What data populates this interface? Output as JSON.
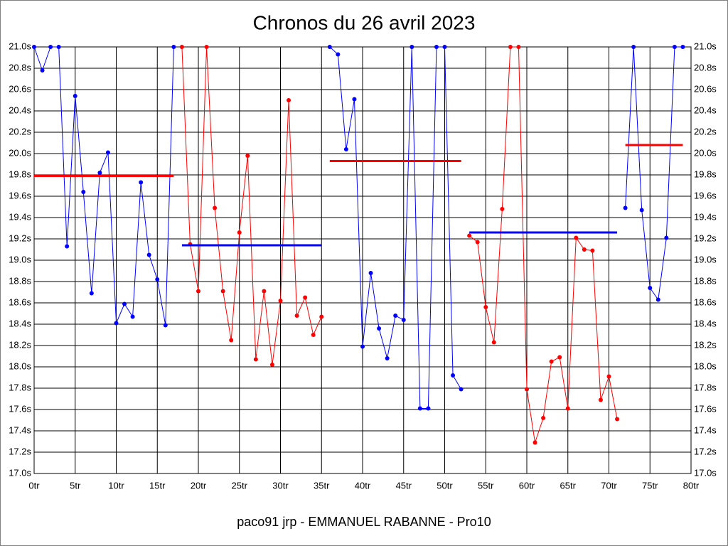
{
  "chart_data": {
    "type": "line",
    "title": "Chronos du 26 avril 2023",
    "footer": "paco91 jrp - EMMANUEL RABANNE - Pro10",
    "x": [
      0,
      1,
      2,
      3,
      4,
      5,
      6,
      7,
      8,
      9,
      10,
      11,
      12,
      13,
      14,
      15,
      16,
      17,
      18,
      19,
      20,
      21,
      22,
      23,
      24,
      25,
      26,
      27,
      28,
      29,
      30,
      31,
      32,
      33,
      34,
      35,
      36,
      37,
      38,
      39,
      40,
      41,
      42,
      43,
      44,
      45,
      46,
      47,
      48,
      49,
      50,
      51,
      52,
      53,
      54,
      55,
      56,
      57,
      58,
      59,
      60,
      61,
      62,
      63,
      64,
      65,
      66,
      67,
      68,
      69,
      70,
      71,
      72,
      73,
      74,
      75,
      76,
      77,
      78,
      79
    ],
    "series": [
      {
        "color": "#0000ff",
        "values": [
          21.0,
          20.78,
          21.0,
          21.0,
          19.13,
          20.54,
          19.64,
          18.69,
          19.82,
          20.01,
          18.41,
          18.59,
          18.47,
          19.73,
          19.05,
          18.82,
          18.39,
          21.0,
          null,
          null,
          null,
          null,
          null,
          null,
          null,
          null,
          null,
          null,
          null,
          null,
          null,
          null,
          null,
          null,
          null,
          null,
          21.0,
          20.93,
          20.04,
          20.51,
          18.19,
          18.88,
          18.36,
          18.08,
          18.48,
          18.44,
          21.0,
          17.61,
          17.61,
          21.0,
          21.0,
          17.92,
          17.79,
          null,
          null,
          null,
          null,
          null,
          null,
          null,
          null,
          null,
          null,
          null,
          null,
          null,
          null,
          null,
          null,
          null,
          null,
          null,
          19.49,
          21.0,
          19.47,
          18.74,
          18.63,
          19.21,
          21.0,
          21.0
        ]
      },
      {
        "color": "#ff0000",
        "values": [
          null,
          null,
          null,
          null,
          null,
          null,
          null,
          null,
          null,
          null,
          null,
          null,
          null,
          null,
          null,
          null,
          null,
          null,
          21.0,
          19.15,
          18.71,
          21.0,
          19.49,
          18.71,
          18.25,
          19.26,
          19.98,
          18.07,
          18.71,
          18.02,
          18.62,
          20.5,
          18.48,
          18.65,
          18.3,
          18.47,
          null,
          null,
          null,
          null,
          null,
          null,
          null,
          null,
          null,
          null,
          null,
          null,
          null,
          null,
          null,
          null,
          null,
          19.23,
          19.17,
          18.56,
          18.23,
          19.48,
          21.0,
          21.0,
          17.79,
          17.29,
          17.52,
          18.05,
          18.09,
          17.61,
          19.21,
          19.1,
          19.09,
          17.69,
          17.91,
          17.51,
          null,
          null,
          null,
          null,
          null,
          null,
          null,
          null
        ]
      }
    ],
    "averages": [
      {
        "color": "#ff0000",
        "x": [
          0,
          17
        ],
        "value": 19.79
      },
      {
        "color": "#0000ff",
        "x": [
          18,
          35
        ],
        "value": 19.14
      },
      {
        "color": "#ff0000",
        "x": [
          36,
          52
        ],
        "value": 19.93
      },
      {
        "color": "#0000ff",
        "x": [
          53,
          71
        ],
        "value": 19.26
      },
      {
        "color": "#ff0000",
        "x": [
          72,
          79
        ],
        "value": 20.08
      }
    ],
    "xlim": [
      0,
      80
    ],
    "ylim": [
      17.0,
      21.0
    ],
    "xticks": [
      {
        "value": 0,
        "label": "0tr"
      },
      {
        "value": 5,
        "label": "5tr"
      },
      {
        "value": 10,
        "label": "10tr"
      },
      {
        "value": 15,
        "label": "15tr"
      },
      {
        "value": 20,
        "label": "20tr"
      },
      {
        "value": 25,
        "label": "25tr"
      },
      {
        "value": 30,
        "label": "30tr"
      },
      {
        "value": 35,
        "label": "35tr"
      },
      {
        "value": 40,
        "label": "40tr"
      },
      {
        "value": 45,
        "label": "45tr"
      },
      {
        "value": 50,
        "label": "50tr"
      },
      {
        "value": 55,
        "label": "55tr"
      },
      {
        "value": 60,
        "label": "60tr"
      },
      {
        "value": 65,
        "label": "65tr"
      },
      {
        "value": 70,
        "label": "70tr"
      },
      {
        "value": 75,
        "label": "75tr"
      },
      {
        "value": 80,
        "label": "80tr"
      }
    ],
    "yticks": [
      {
        "value": 17.0,
        "label": "17.0s"
      },
      {
        "value": 17.2,
        "label": "17.2s"
      },
      {
        "value": 17.4,
        "label": "17.4s"
      },
      {
        "value": 17.6,
        "label": "17.6s"
      },
      {
        "value": 17.8,
        "label": "17.8s"
      },
      {
        "value": 18.0,
        "label": "18.0s"
      },
      {
        "value": 18.2,
        "label": "18.2s"
      },
      {
        "value": 18.4,
        "label": "18.4s"
      },
      {
        "value": 18.6,
        "label": "18.6s"
      },
      {
        "value": 18.8,
        "label": "18.8s"
      },
      {
        "value": 19.0,
        "label": "19.0s"
      },
      {
        "value": 19.2,
        "label": "19.2s"
      },
      {
        "value": 19.4,
        "label": "19.4s"
      },
      {
        "value": 19.6,
        "label": "19.6s"
      },
      {
        "value": 19.8,
        "label": "19.8s"
      },
      {
        "value": 20.0,
        "label": "20.0s"
      },
      {
        "value": 20.2,
        "label": "20.2s"
      },
      {
        "value": 20.4,
        "label": "20.4s"
      },
      {
        "value": 20.6,
        "label": "20.6s"
      },
      {
        "value": 20.8,
        "label": "20.8s"
      },
      {
        "value": 21.0,
        "label": "21.0s"
      }
    ],
    "grid": true
  }
}
